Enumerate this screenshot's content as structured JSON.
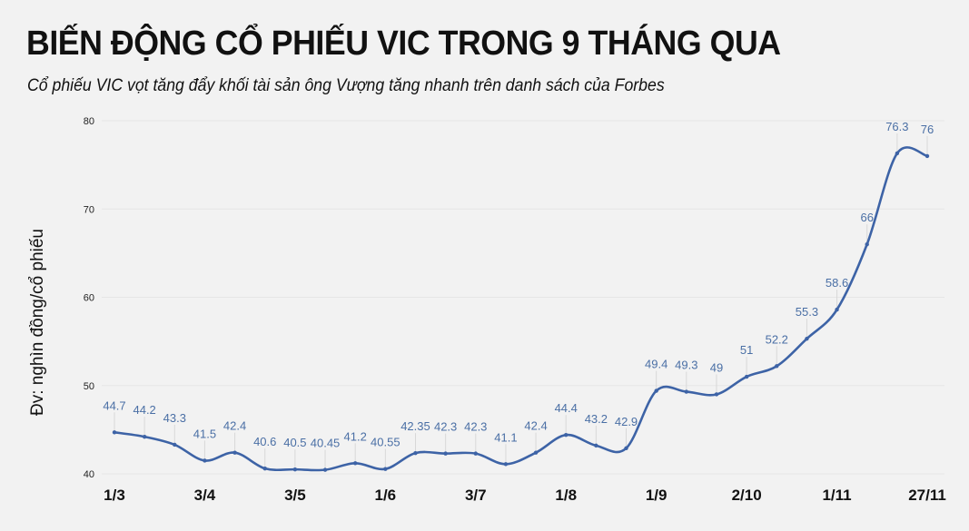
{
  "header": {
    "title": "BIẾN ĐỘNG CỔ PHIẾU VIC TRONG 9 THÁNG QUA",
    "subtitle": "Cổ phiếu VIC vọt tăng đẩy khối tài sản ông Vượng tăng nhanh trên danh sách của Forbes"
  },
  "colors": {
    "background": "#f2f2f2",
    "line": "#3d63a6",
    "data_label": "#4a6fa5",
    "gridline": "#e6e6e6"
  },
  "chart_data": {
    "type": "line",
    "title": "BIẾN ĐỘNG CỔ PHIẾU VIC TRONG 9 THÁNG QUA",
    "subtitle": "Cổ phiếu VIC vọt tăng đẩy khối tài sản ông Vượng tăng nhanh trên danh sách của Forbes",
    "xlabel": "",
    "ylabel": "Đv: nghìn đồng/cổ phiếu",
    "ylim": [
      40,
      80
    ],
    "yticks": [
      40,
      50,
      60,
      70,
      80
    ],
    "grid": true,
    "smooth": true,
    "x_tick_labels": [
      {
        "index": 0,
        "label": "1/3"
      },
      {
        "index": 3,
        "label": "3/4"
      },
      {
        "index": 6,
        "label": "3/5"
      },
      {
        "index": 9,
        "label": "1/6"
      },
      {
        "index": 12,
        "label": "3/7"
      },
      {
        "index": 15,
        "label": "1/8"
      },
      {
        "index": 18,
        "label": "1/9"
      },
      {
        "index": 21,
        "label": "2/10"
      },
      {
        "index": 24,
        "label": "1/11"
      },
      {
        "index": 27,
        "label": "27/11"
      }
    ],
    "values": [
      44.7,
      44.2,
      43.3,
      41.5,
      42.4,
      40.6,
      40.5,
      40.45,
      41.2,
      40.55,
      42.35,
      42.3,
      42.3,
      41.1,
      42.4,
      44.4,
      43.2,
      42.9,
      49.4,
      49.3,
      49,
      51,
      52.2,
      55.3,
      58.6,
      66,
      76.3,
      76
    ],
    "data_labels": [
      "44.7",
      "44.2",
      "43.3",
      "41.5",
      "42.4",
      "40.6",
      "40.5",
      "40.45",
      "41.2",
      "40.55",
      "42.35",
      "42.3",
      "42.3",
      "41.1",
      "42.4",
      "44.4",
      "43.2",
      "42.9",
      "49.4",
      "49.3",
      "49",
      "51",
      "52.2",
      "55.3",
      "58.6",
      "66",
      "76.3",
      "76"
    ]
  }
}
